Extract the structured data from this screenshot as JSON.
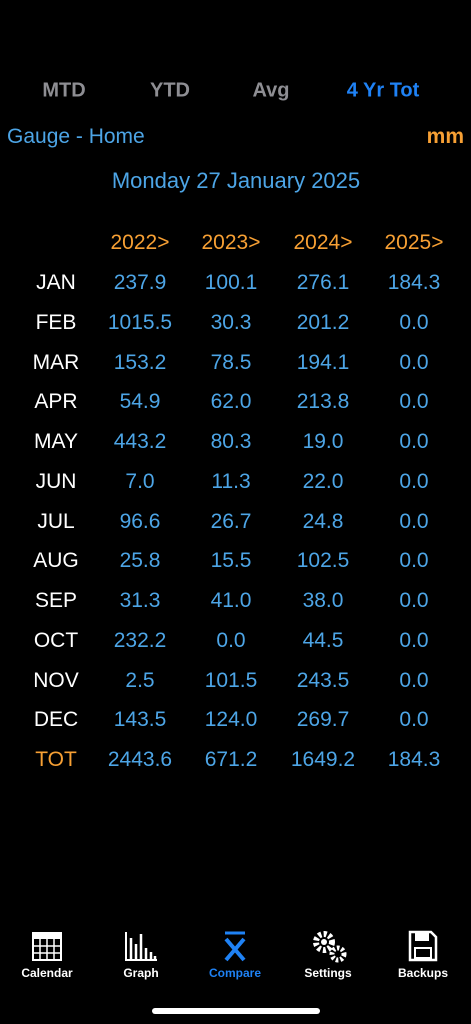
{
  "tabs": [
    "MTD",
    "YTD",
    "Avg",
    "4 Yr Tot"
  ],
  "gauge": "Gauge - Home",
  "unit": "mm",
  "date": "Monday 27 January 2025",
  "table": {
    "columns": [
      "2022>",
      "2023>",
      "2024>",
      "2025>"
    ],
    "rows": [
      [
        "JAN",
        "237.9",
        "100.1",
        "276.1",
        "184.3"
      ],
      [
        "FEB",
        "1015.5",
        "30.3",
        "201.2",
        "0.0"
      ],
      [
        "MAR",
        "153.2",
        "78.5",
        "194.1",
        "0.0"
      ],
      [
        "APR",
        "54.9",
        "62.0",
        "213.8",
        "0.0"
      ],
      [
        "MAY",
        "443.2",
        "80.3",
        "19.0",
        "0.0"
      ],
      [
        "JUN",
        "7.0",
        "11.3",
        "22.0",
        "0.0"
      ],
      [
        "JUL",
        "96.6",
        "26.7",
        "24.8",
        "0.0"
      ],
      [
        "AUG",
        "25.8",
        "15.5",
        "102.5",
        "0.0"
      ],
      [
        "SEP",
        "31.3",
        "41.0",
        "38.0",
        "0.0"
      ],
      [
        "OCT",
        "232.2",
        "0.0",
        "44.5",
        "0.0"
      ],
      [
        "NOV",
        "2.5",
        "101.5",
        "243.5",
        "0.0"
      ],
      [
        "DEC",
        "143.5",
        "124.0",
        "269.7",
        "0.0"
      ]
    ],
    "total": [
      "TOT",
      "2443.6",
      "671.2",
      "1649.2",
      "184.3"
    ]
  },
  "nav": [
    "Calendar",
    "Graph",
    "Compare",
    "Settings",
    "Backups"
  ]
}
